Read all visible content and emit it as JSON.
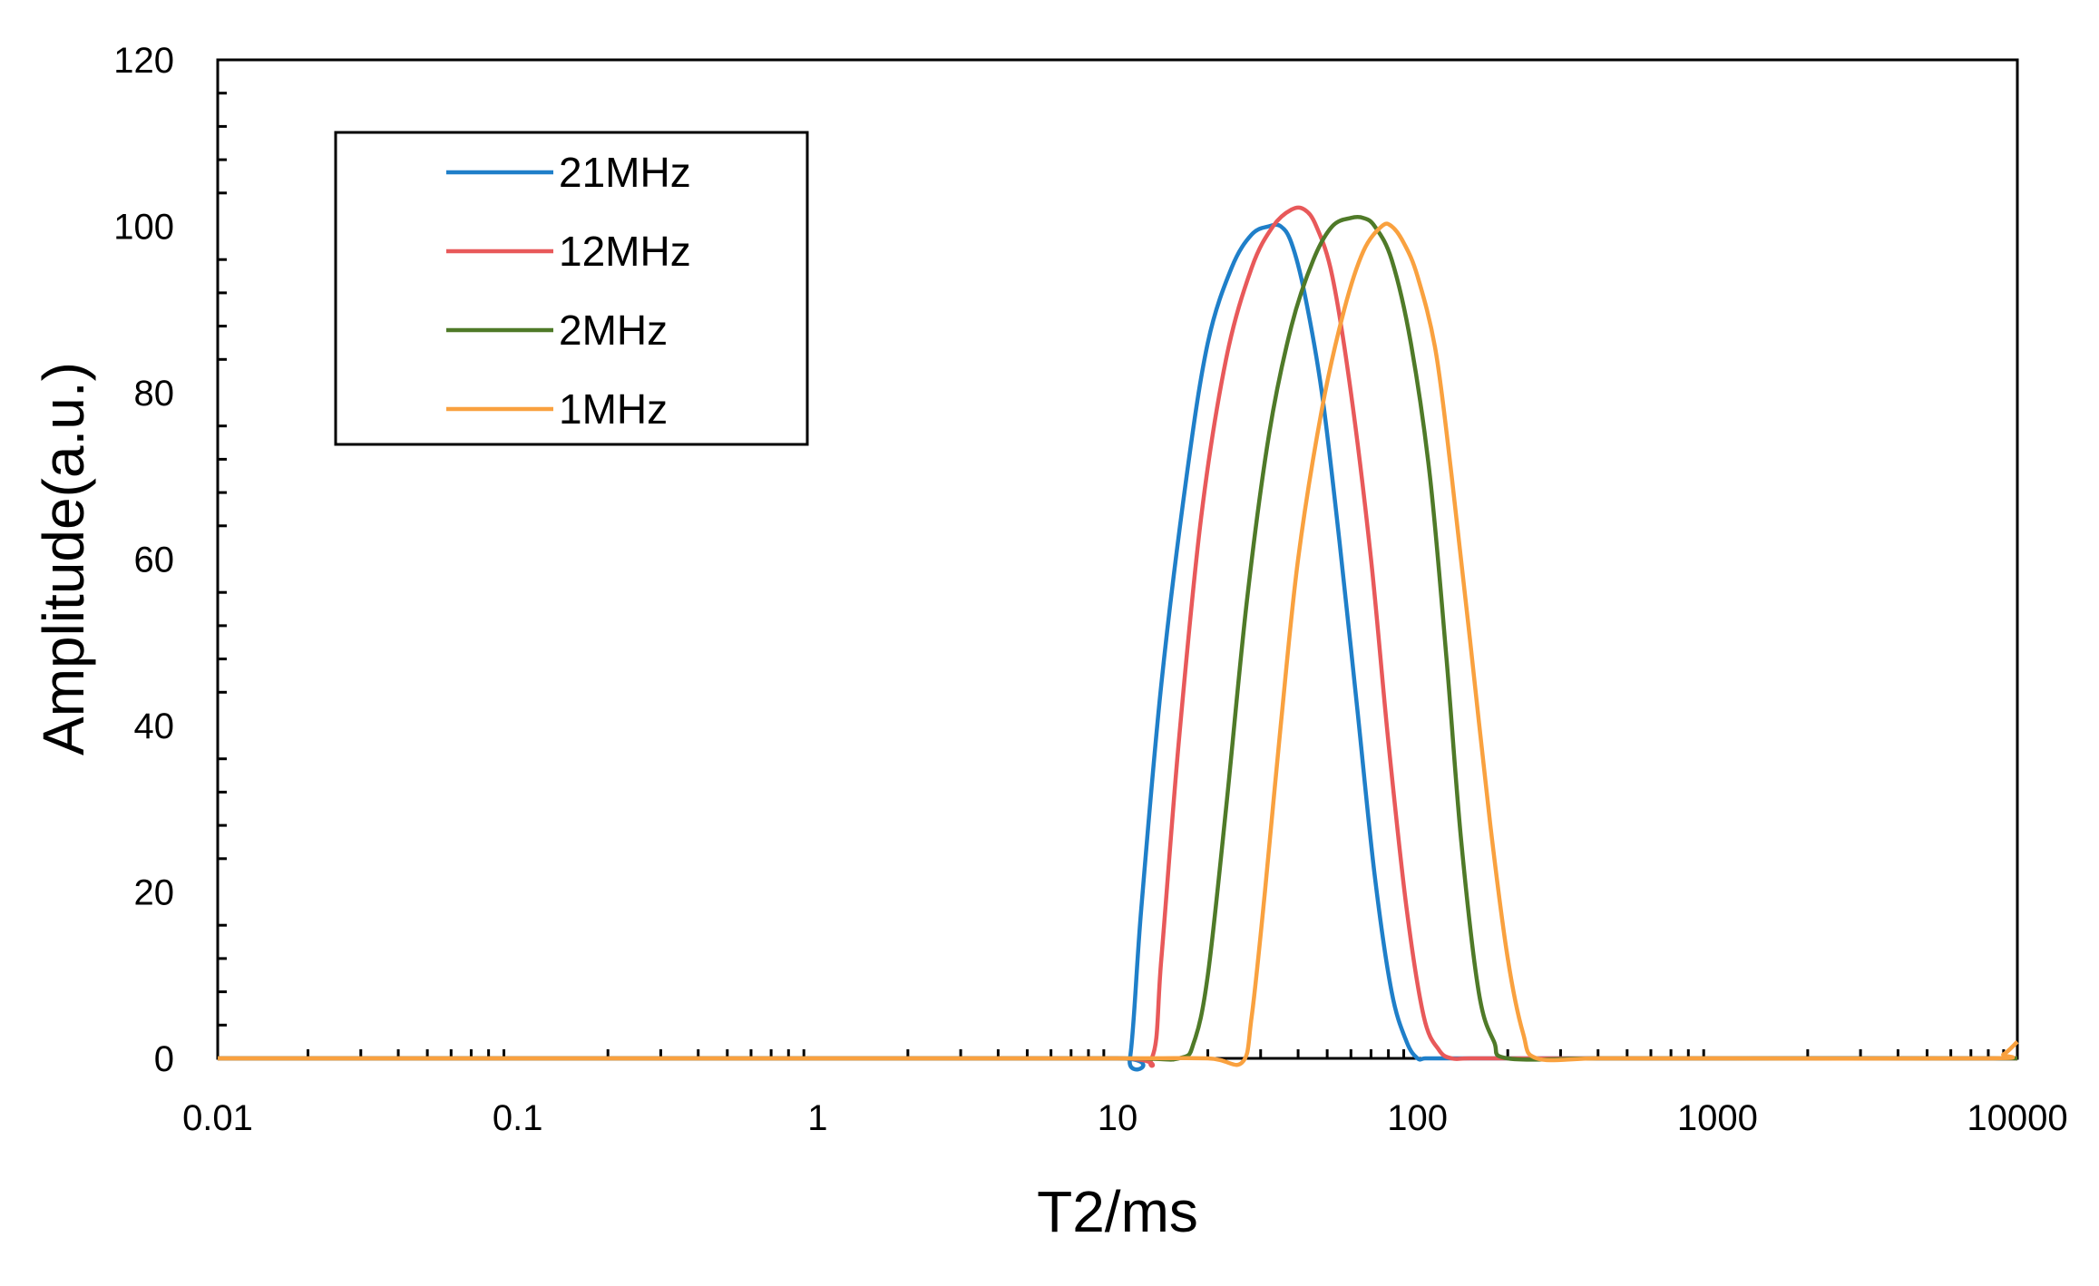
{
  "chart_data": {
    "type": "line",
    "title": "",
    "xlabel": "T2/ms",
    "ylabel": "Amplitude(a.u.)",
    "xscale": "log",
    "xlim": [
      0.01,
      10000
    ],
    "ylim": [
      0,
      120
    ],
    "x_ticks": [
      "0.01",
      "0.1",
      "1",
      "10",
      "100",
      "1000",
      "10000"
    ],
    "y_ticks": [
      "0",
      "20",
      "40",
      "60",
      "80",
      "100",
      "120"
    ],
    "grid": false,
    "legend_position": "top-left",
    "series": [
      {
        "name": "21MHz",
        "color": "#1f7fc9",
        "x": [
          0.01,
          1,
          10,
          11,
          12,
          14,
          17,
          20,
          24,
          28,
          32,
          35,
          38,
          42,
          48,
          55,
          63,
          72,
          82,
          92,
          100,
          106,
          120,
          200,
          1000,
          10000
        ],
        "y": [
          0,
          0,
          0,
          0,
          18,
          45,
          70,
          86,
          95,
          99,
          100,
          100,
          98,
          92,
          80,
          62,
          42,
          22,
          8,
          2,
          0,
          0,
          0,
          0,
          0,
          0
        ]
      },
      {
        "name": "12MHz",
        "color": "#e8595a",
        "x": [
          0.01,
          1,
          10,
          13,
          14,
          16,
          19,
          23,
          28,
          33,
          38,
          42,
          46,
          52,
          60,
          70,
          80,
          92,
          105,
          118,
          130,
          150,
          250,
          1000,
          10000
        ],
        "y": [
          0,
          0,
          0,
          0,
          12,
          38,
          65,
          84,
          95,
          100,
          102,
          102,
          100,
          94,
          80,
          60,
          38,
          18,
          5,
          1,
          0,
          0,
          0,
          0,
          0
        ]
      },
      {
        "name": "2MHz",
        "color": "#4f7a28",
        "x": [
          0.01,
          1,
          10,
          16,
          18,
          20,
          23,
          27,
          32,
          38,
          45,
          52,
          60,
          66,
          72,
          82,
          95,
          110,
          125,
          140,
          160,
          180,
          200,
          400,
          1000,
          10000
        ],
        "y": [
          0,
          0,
          0,
          0,
          2,
          10,
          30,
          55,
          75,
          88,
          96,
          100,
          101,
          101,
          100,
          96,
          86,
          70,
          48,
          26,
          8,
          2,
          0,
          0,
          0,
          0
        ]
      },
      {
        "name": "1MHz",
        "color": "#f9a13f",
        "x": [
          0.01,
          1,
          10,
          20,
          26,
          28,
          31,
          35,
          40,
          48,
          57,
          66,
          76,
          82,
          90,
          100,
          115,
          130,
          150,
          175,
          200,
          225,
          250,
          400,
          1000,
          8000,
          9000,
          10000
        ],
        "y": [
          0,
          0,
          0,
          0,
          -0.5,
          5,
          20,
          40,
          60,
          78,
          90,
          97,
          100,
          100,
          98,
          94,
          85,
          70,
          50,
          28,
          12,
          3,
          0,
          0,
          0,
          0,
          0.5,
          2
        ]
      }
    ]
  }
}
